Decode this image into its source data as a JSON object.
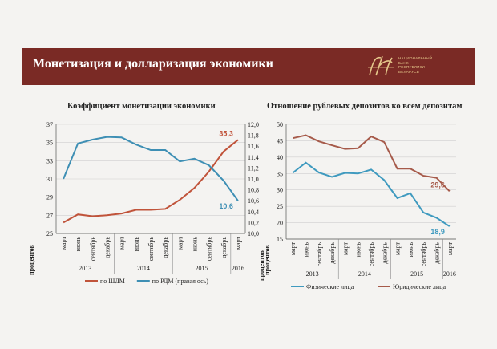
{
  "header": {
    "title": "Монетизация и долларизация экономики",
    "logo_text": [
      "НАЦИОНАЛЬНЫЙ",
      "БАНК",
      "РЕСПУБЛИКИ",
      "БЕЛАРУСЬ"
    ]
  },
  "colors": {
    "banner": "#7a2a25",
    "red": "#c0533a",
    "blue": "#3e8fb4",
    "brown": "#a65a4a",
    "teal": "#3f9abf"
  },
  "chart_data": [
    {
      "type": "line",
      "title": "Коэффициент монетизации экономики",
      "months": [
        "март",
        "июнь",
        "сентябрь",
        "декабрь",
        "март",
        "июнь",
        "сентябрь",
        "декабрь",
        "март",
        "июнь",
        "сентябрь",
        "декабрь",
        "март"
      ],
      "years": [
        {
          "label": "2013",
          "start": 0,
          "end": 3
        },
        {
          "label": "2014",
          "start": 4,
          "end": 7
        },
        {
          "label": "2015",
          "start": 8,
          "end": 11
        },
        {
          "label": "2016",
          "start": 12,
          "end": 12
        }
      ],
      "ylabel": "процентов",
      "ylabel_right": "процентов",
      "ylim": [
        25,
        37
      ],
      "yticks": [
        25,
        27,
        29,
        31,
        33,
        35,
        37
      ],
      "ylim_right": [
        10.0,
        12.0
      ],
      "yticks_right": [
        "10,0",
        "10,2",
        "10,4",
        "10,6",
        "10,8",
        "11,0",
        "11,2",
        "11,4",
        "11,6",
        "11,8",
        "12,0"
      ],
      "series": [
        {
          "name": "по ШДМ",
          "axis": "left",
          "color": "#c0533a",
          "values": [
            26.2,
            27.1,
            26.9,
            27.0,
            27.2,
            27.6,
            27.6,
            27.7,
            28.7,
            30.0,
            31.8,
            34.0,
            35.3
          ],
          "end_label": "35,3"
        },
        {
          "name": "по РДМ (правая ось)",
          "axis": "right",
          "color": "#3e8fb4",
          "values": [
            11.0,
            11.65,
            11.72,
            11.77,
            11.76,
            11.63,
            11.53,
            11.53,
            11.32,
            11.37,
            11.25,
            10.97,
            10.6
          ],
          "end_label": "10,6"
        }
      ]
    },
    {
      "type": "line",
      "title": "Отношение рублевых депозитов ко всем депозитам",
      "months": [
        "март",
        "июнь",
        "сентябрь",
        "декабрь",
        "март",
        "июнь",
        "сентябрь",
        "декабрь",
        "март",
        "июнь",
        "сентябрь",
        "декабрь",
        "март"
      ],
      "years": [
        {
          "label": "2013",
          "start": 0,
          "end": 3
        },
        {
          "label": "2014",
          "start": 4,
          "end": 7
        },
        {
          "label": "2015",
          "start": 8,
          "end": 11
        },
        {
          "label": "2016",
          "start": 12,
          "end": 12
        }
      ],
      "ylabel": "процентов",
      "ylim": [
        15,
        50
      ],
      "yticks": [
        15,
        20,
        25,
        30,
        35,
        40,
        45,
        50
      ],
      "series": [
        {
          "name": "Физические лица",
          "color": "#3f9abf",
          "values": [
            35.2,
            38.3,
            35.3,
            34.0,
            35.2,
            35.0,
            36.2,
            33.0,
            27.5,
            29.0,
            23.1,
            21.5,
            18.9
          ],
          "end_label": "18,9"
        },
        {
          "name": "Юридические лица",
          "color": "#a65a4a",
          "values": [
            45.8,
            46.7,
            44.8,
            43.6,
            42.5,
            42.7,
            46.3,
            44.6,
            36.5,
            36.5,
            34.3,
            33.7,
            29.6
          ],
          "end_label": "29,6"
        }
      ]
    }
  ]
}
